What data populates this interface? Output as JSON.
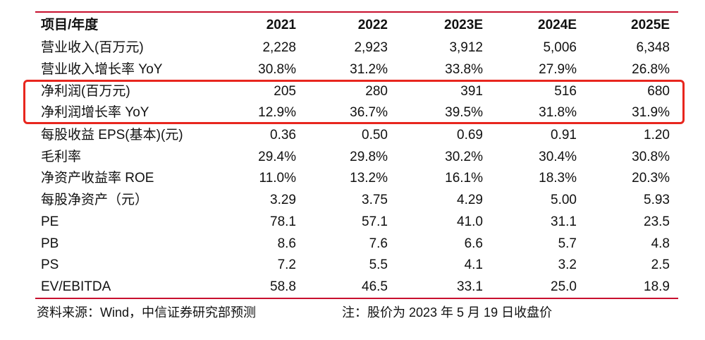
{
  "table": {
    "header": [
      "项目/年度",
      "2021",
      "2022",
      "2023E",
      "2024E",
      "2025E"
    ],
    "rows": [
      [
        "营业收入(百万元)",
        "2,228",
        "2,923",
        "3,912",
        "5,006",
        "6,348"
      ],
      [
        "营业收入增长率 YoY",
        "30.8%",
        "31.2%",
        "33.8%",
        "27.9%",
        "26.8%"
      ],
      [
        "净利润(百万元)",
        "205",
        "280",
        "391",
        "516",
        "680"
      ],
      [
        "净利润增长率 YoY",
        "12.9%",
        "36.7%",
        "39.5%",
        "31.8%",
        "31.9%"
      ],
      [
        "每股收益 EPS(基本)(元)",
        "0.36",
        "0.50",
        "0.69",
        "0.91",
        "1.20"
      ],
      [
        "毛利率",
        "29.4%",
        "29.8%",
        "30.2%",
        "30.4%",
        "30.8%"
      ],
      [
        "净资产收益率 ROE",
        "11.0%",
        "13.2%",
        "16.1%",
        "18.3%",
        "20.3%"
      ],
      [
        "每股净资产（元）",
        "3.29",
        "3.75",
        "4.29",
        "5.00",
        "5.93"
      ],
      [
        "PE",
        "78.1",
        "57.1",
        "41.0",
        "31.1",
        "23.5"
      ],
      [
        "PB",
        "8.6",
        "7.6",
        "6.6",
        "5.7",
        "4.8"
      ],
      [
        "PS",
        "7.2",
        "5.5",
        "4.1",
        "3.2",
        "2.5"
      ],
      [
        "EV/EBITDA",
        "58.8",
        "46.5",
        "33.1",
        "25.0",
        "18.9"
      ]
    ]
  },
  "footer": {
    "source": "资料来源：Wind，中信证券研究部预测",
    "note": "注：股价为 2023 年 5 月 19 日收盘价"
  },
  "colors": {
    "rule": "#c8102e",
    "highlight": "#e8261e"
  }
}
